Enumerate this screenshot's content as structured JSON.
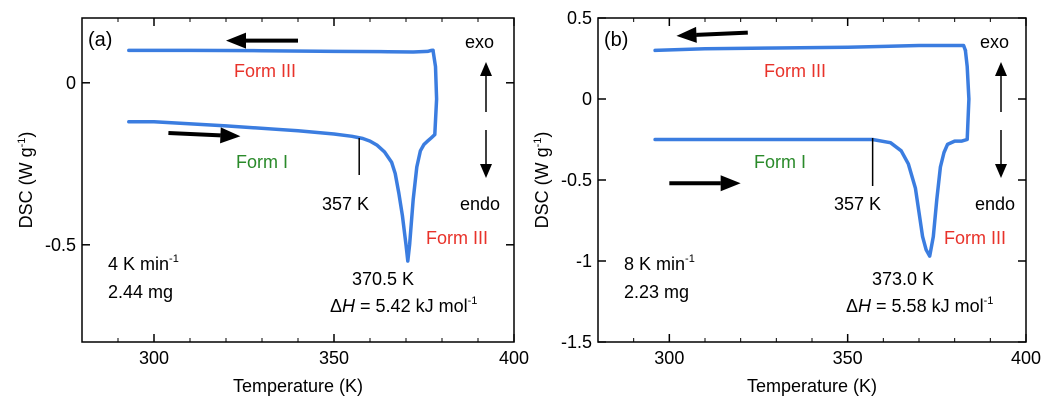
{
  "chart_data": [
    {
      "type": "line",
      "panel_label": "(a)",
      "xlabel": "Temperature (K)",
      "ylabel": "DSC (W g",
      "ylabel_sup": "-1",
      "ylabel_close": ")",
      "xlim": [
        280,
        400
      ],
      "ylim": [
        -0.8,
        0.2
      ],
      "xticks": [
        300,
        350,
        400
      ],
      "yticks": [
        0,
        -0.5
      ],
      "xtick_labels": [
        "300",
        "350",
        "400"
      ],
      "ytick_labels": [
        "0",
        "-0.5"
      ],
      "grid": false,
      "series": [
        {
          "color": "#3b7de0",
          "x": [
            293,
            310,
            330,
            350,
            365,
            372,
            376,
            377,
            377.5
          ],
          "y": [
            0.1,
            0.1,
            0.099,
            0.097,
            0.096,
            0.095,
            0.097,
            0.1,
            0.1
          ]
        },
        {
          "color": "#3b7de0",
          "x": [
            293,
            300,
            320,
            340,
            350,
            355,
            358,
            360,
            362,
            364,
            366,
            367,
            368,
            369,
            370,
            370.5,
            371,
            372,
            373,
            374,
            375,
            376,
            377,
            378,
            378.5,
            378.2,
            377.5
          ],
          "y": [
            -0.12,
            -0.12,
            -0.133,
            -0.148,
            -0.158,
            -0.165,
            -0.172,
            -0.18,
            -0.193,
            -0.213,
            -0.245,
            -0.28,
            -0.34,
            -0.41,
            -0.5,
            -0.55,
            -0.5,
            -0.36,
            -0.26,
            -0.21,
            -0.19,
            -0.18,
            -0.17,
            -0.16,
            -0.05,
            0.05,
            0.1
          ]
        }
      ],
      "arrows": [
        {
          "from": [
            340,
            0.13
          ],
          "to": [
            320,
            0.13
          ]
        },
        {
          "from": [
            304,
            -0.155
          ],
          "to": [
            324,
            -0.165
          ]
        }
      ],
      "annotations": {
        "form3": "Form III",
        "form1": "Form I",
        "form3b": "Form III",
        "onset": "357 K",
        "onset_x": 357,
        "peak_temp": "370.5 K",
        "dh_label": "Δ",
        "dh_italic": "H",
        "dh_value": " = 5.42 kJ mol",
        "dh_sup": "-1",
        "rate": "4 K min",
        "rate_sup": "-1",
        "mass": "2.44 mg",
        "exo": "exo",
        "endo": "endo"
      },
      "annotation_colors": {
        "form3": "#e8322a",
        "form1": "#2a8a2a"
      }
    },
    {
      "type": "line",
      "panel_label": "(b)",
      "xlabel": "Temperature (K)",
      "ylabel": "DSC (W g",
      "ylabel_sup": "-1",
      "ylabel_close": ")",
      "xlim": [
        280,
        400
      ],
      "ylim": [
        -1.5,
        0.5
      ],
      "xticks": [
        300,
        350,
        400
      ],
      "yticks": [
        0.5,
        0,
        -0.5,
        -1,
        -1.5
      ],
      "xtick_labels": [
        "300",
        "350",
        "400"
      ],
      "ytick_labels": [
        "0.5",
        "0",
        "-0.5",
        "-1",
        "-1.5"
      ],
      "grid": false,
      "series": [
        {
          "color": "#3b7de0",
          "x": [
            296,
            310,
            330,
            350,
            370,
            380,
            382.5,
            383
          ],
          "y": [
            0.3,
            0.31,
            0.315,
            0.32,
            0.33,
            0.33,
            0.33,
            0.3
          ]
        },
        {
          "color": "#3b7de0",
          "x": [
            296,
            320,
            340,
            350,
            357,
            362,
            365,
            367,
            369,
            370,
            371,
            372,
            373,
            374,
            375,
            376,
            377,
            378,
            380,
            382,
            383.5,
            384,
            383.5,
            383
          ],
          "y": [
            -0.25,
            -0.25,
            -0.25,
            -0.25,
            -0.25,
            -0.27,
            -0.32,
            -0.4,
            -0.55,
            -0.7,
            -0.85,
            -0.93,
            -0.97,
            -0.85,
            -0.62,
            -0.42,
            -0.33,
            -0.28,
            -0.26,
            -0.26,
            -0.25,
            0.0,
            0.2,
            0.3
          ]
        }
      ],
      "arrows": [
        {
          "from": [
            322,
            0.41
          ],
          "to": [
            302,
            0.39
          ]
        },
        {
          "from": [
            300,
            -0.52
          ],
          "to": [
            320,
            -0.52
          ]
        }
      ],
      "annotations": {
        "form3": "Form III",
        "form1": "Form I",
        "form3b": "Form III",
        "onset": "357 K",
        "onset_x": 357,
        "peak_temp": "373.0 K",
        "dh_label": "Δ",
        "dh_italic": "H",
        "dh_value": " = 5.58 kJ mol",
        "dh_sup": "-1",
        "rate": "8 K min",
        "rate_sup": "-1",
        "mass": "2.23 mg",
        "exo": "exo",
        "endo": "endo"
      },
      "annotation_colors": {
        "form3": "#e8322a",
        "form1": "#2a8a2a"
      }
    }
  ]
}
